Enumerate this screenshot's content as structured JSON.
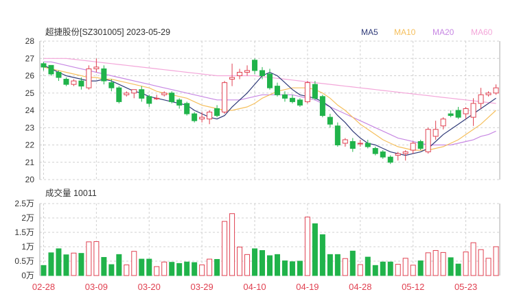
{
  "title": "超捷股份[SZ301005] 2023-05-29",
  "legend": [
    {
      "label": "MA5",
      "color": "#2f3a78"
    },
    {
      "label": "MA10",
      "color": "#f5bf5c"
    },
    {
      "label": "MA20",
      "color": "#c787e3"
    },
    {
      "label": "MA60",
      "color": "#f3a6d9"
    }
  ],
  "volume_title": "成交量 10011",
  "colors": {
    "up": "#e04050",
    "down": "#20b34a",
    "grid": "#d0d0d0"
  },
  "chart_data": {
    "type": "candlestick",
    "dates": [
      "02-28",
      "03-01",
      "03-02",
      "03-03",
      "03-06",
      "03-07",
      "03-08",
      "03-09",
      "03-10",
      "03-13",
      "03-14",
      "03-15",
      "03-16",
      "03-17",
      "03-20",
      "03-21",
      "03-22",
      "03-23",
      "03-24",
      "03-27",
      "03-28",
      "03-29",
      "03-30",
      "03-31",
      "04-03",
      "04-04",
      "04-06",
      "04-07",
      "04-10",
      "04-11",
      "04-12",
      "04-13",
      "04-14",
      "04-17",
      "04-18",
      "04-19",
      "04-20",
      "04-21",
      "04-24",
      "04-25",
      "04-26",
      "04-27",
      "04-28",
      "05-04",
      "05-05",
      "05-08",
      "05-09",
      "05-10",
      "05-11",
      "05-12",
      "05-15",
      "05-16",
      "05-17",
      "05-18",
      "05-19",
      "05-22",
      "05-23",
      "05-24",
      "05-25",
      "05-26",
      "05-29"
    ],
    "x_tick_labels": [
      "02-28",
      "03-09",
      "03-20",
      "03-29",
      "04-10",
      "04-19",
      "04-28",
      "05-12",
      "05-23"
    ],
    "x_tick_indices": [
      0,
      7,
      14,
      21,
      28,
      35,
      42,
      49,
      56
    ],
    "price": {
      "ylim": [
        20,
        28
      ],
      "yticks": [
        20,
        21,
        22,
        23,
        24,
        25,
        26,
        27,
        28
      ],
      "ohlc": [
        [
          26.7,
          26.8,
          26.3,
          26.5
        ],
        [
          26.6,
          26.6,
          26.0,
          26.1
        ],
        [
          26.2,
          26.3,
          25.7,
          25.9
        ],
        [
          25.8,
          25.9,
          25.4,
          25.5
        ],
        [
          25.5,
          25.8,
          25.4,
          25.7
        ],
        [
          25.7,
          25.9,
          25.2,
          25.4
        ],
        [
          25.3,
          26.6,
          25.2,
          26.4
        ],
        [
          26.4,
          27.0,
          26.2,
          26.5
        ],
        [
          26.4,
          26.6,
          25.5,
          25.7
        ],
        [
          25.6,
          25.8,
          25.1,
          25.3
        ],
        [
          25.3,
          25.4,
          24.4,
          24.5
        ],
        [
          24.9,
          25.1,
          24.8,
          25.0
        ],
        [
          25.0,
          25.2,
          24.7,
          25.2
        ],
        [
          25.2,
          25.4,
          24.5,
          24.7
        ],
        [
          24.8,
          24.9,
          24.2,
          24.4
        ],
        [
          24.7,
          24.9,
          24.6,
          24.7
        ],
        [
          24.9,
          25.1,
          24.8,
          25.0
        ],
        [
          25.0,
          25.1,
          24.4,
          24.5
        ],
        [
          24.6,
          24.7,
          24.1,
          24.3
        ],
        [
          24.4,
          24.5,
          23.7,
          23.8
        ],
        [
          23.8,
          23.9,
          23.3,
          23.4
        ],
        [
          23.5,
          23.9,
          23.3,
          23.6
        ],
        [
          23.5,
          24.0,
          23.2,
          23.9
        ],
        [
          24.1,
          24.3,
          23.6,
          23.7
        ],
        [
          23.9,
          25.7,
          23.8,
          25.6
        ],
        [
          25.8,
          26.7,
          25.4,
          25.9
        ],
        [
          26.0,
          26.4,
          25.8,
          26.2
        ],
        [
          26.2,
          26.6,
          26.0,
          26.3
        ],
        [
          26.9,
          27.0,
          26.1,
          26.3
        ],
        [
          26.3,
          26.5,
          25.8,
          26.0
        ],
        [
          26.1,
          26.4,
          25.2,
          25.3
        ],
        [
          25.4,
          25.6,
          24.8,
          24.9
        ],
        [
          24.9,
          25.1,
          24.5,
          24.7
        ],
        [
          24.7,
          24.9,
          24.4,
          24.5
        ],
        [
          24.6,
          24.7,
          24.2,
          24.3
        ],
        [
          24.5,
          25.7,
          24.4,
          25.6
        ],
        [
          25.5,
          25.7,
          24.6,
          24.7
        ],
        [
          24.8,
          24.9,
          23.6,
          23.7
        ],
        [
          23.6,
          23.8,
          23.0,
          23.2
        ],
        [
          23.1,
          23.3,
          21.9,
          22.0
        ],
        [
          22.1,
          22.4,
          21.9,
          22.3
        ],
        [
          22.2,
          22.4,
          21.6,
          21.8
        ],
        [
          22.1,
          22.3,
          21.9,
          22.1
        ],
        [
          22.1,
          22.3,
          21.8,
          21.9
        ],
        [
          21.8,
          21.9,
          21.4,
          21.5
        ],
        [
          21.6,
          21.7,
          21.2,
          21.3
        ],
        [
          21.3,
          21.4,
          20.9,
          21.0
        ],
        [
          21.4,
          21.6,
          21.1,
          21.5
        ],
        [
          21.5,
          21.7,
          21.1,
          21.6
        ],
        [
          21.7,
          22.2,
          21.5,
          22.1
        ],
        [
          22.2,
          22.3,
          21.7,
          21.8
        ],
        [
          21.6,
          23.0,
          21.5,
          22.9
        ],
        [
          22.5,
          23.4,
          22.3,
          22.9
        ],
        [
          23.1,
          23.6,
          22.9,
          23.5
        ],
        [
          23.8,
          24.0,
          23.6,
          23.7
        ],
        [
          24.0,
          24.2,
          23.5,
          23.6
        ],
        [
          23.8,
          24.2,
          23.5,
          24.1
        ],
        [
          23.6,
          24.7,
          23.1,
          24.4
        ],
        [
          24.4,
          25.3,
          24.1,
          24.9
        ],
        [
          24.9,
          25.1,
          24.8,
          25.0
        ],
        [
          25.0,
          25.5,
          24.9,
          25.3
        ]
      ],
      "ma5": [
        26.6,
        26.4,
        26.2,
        26.0,
        25.9,
        25.8,
        25.7,
        25.7,
        25.8,
        25.7,
        25.5,
        25.3,
        25.1,
        25.0,
        24.8,
        24.7,
        24.6,
        24.5,
        24.4,
        24.3,
        24.0,
        23.8,
        23.6,
        23.5,
        23.7,
        24.2,
        24.6,
        25.0,
        25.5,
        26.0,
        26.2,
        26.0,
        25.6,
        25.2,
        24.9,
        24.8,
        24.7,
        24.5,
        24.2,
        23.7,
        23.3,
        22.8,
        22.4,
        22.1,
        22.0,
        21.8,
        21.6,
        21.5,
        21.4,
        21.5,
        21.6,
        21.8,
        22.2,
        22.6,
        22.9,
        23.2,
        23.5,
        23.8,
        24.1,
        24.4,
        24.7
      ],
      "ma10": [
        26.5,
        26.4,
        26.3,
        26.2,
        26.1,
        26.0,
        25.9,
        25.9,
        25.8,
        25.8,
        25.7,
        25.6,
        25.5,
        25.4,
        25.3,
        25.1,
        25.0,
        24.9,
        24.8,
        24.7,
        24.5,
        24.3,
        24.2,
        24.1,
        24.0,
        24.0,
        24.1,
        24.2,
        24.4,
        24.7,
        24.9,
        25.1,
        25.2,
        25.3,
        25.3,
        25.3,
        25.2,
        25.0,
        24.7,
        24.3,
        24.0,
        23.6,
        23.2,
        22.9,
        22.6,
        22.3,
        22.1,
        21.9,
        21.8,
        21.7,
        21.7,
        21.7,
        21.8,
        21.9,
        22.1,
        22.3,
        22.6,
        22.9,
        23.2,
        23.6,
        24.0
      ],
      "ma20": [
        26.8,
        26.8,
        26.7,
        26.6,
        26.5,
        26.4,
        26.3,
        26.2,
        26.1,
        26.0,
        25.9,
        25.8,
        25.7,
        25.6,
        25.5,
        25.4,
        25.3,
        25.2,
        25.1,
        25.0,
        24.9,
        24.8,
        24.7,
        24.6,
        24.6,
        24.6,
        24.6,
        24.7,
        24.8,
        24.9,
        24.9,
        24.9,
        24.9,
        24.9,
        24.8,
        24.7,
        24.6,
        24.4,
        24.2,
        24.0,
        23.8,
        23.6,
        23.4,
        23.2,
        23.0,
        22.8,
        22.6,
        22.4,
        22.3,
        22.2,
        22.1,
        22.0,
        22.0,
        22.0,
        22.0,
        22.1,
        22.2,
        22.3,
        22.5,
        22.6,
        22.8
      ],
      "ma60": [
        27.0,
        27.0,
        27.0,
        27.0,
        26.95,
        26.9,
        26.85,
        26.8,
        26.75,
        26.7,
        26.65,
        26.6,
        26.55,
        26.5,
        26.45,
        26.4,
        26.35,
        26.3,
        26.25,
        26.2,
        26.15,
        26.1,
        26.05,
        26.0,
        26.0,
        26.0,
        26.0,
        26.0,
        26.0,
        25.95,
        25.9,
        25.85,
        25.8,
        25.75,
        25.7,
        25.65,
        25.6,
        25.55,
        25.5,
        25.45,
        25.4,
        25.35,
        25.3,
        25.25,
        25.2,
        25.15,
        25.1,
        25.05,
        25.0,
        24.95,
        24.9,
        24.85,
        24.8,
        24.75,
        24.7,
        24.65,
        24.6,
        24.55,
        24.5,
        24.45,
        24.4
      ]
    },
    "volume": {
      "ylim": [
        0,
        25000
      ],
      "yticks": [
        0,
        5000,
        10000,
        15000,
        20000,
        25000
      ],
      "ytick_labels": [
        "0万",
        "0.5万",
        "1万",
        "1.5万",
        "2万",
        "2.5万"
      ],
      "values": [
        3500,
        7900,
        9300,
        7200,
        7800,
        7700,
        11700,
        11800,
        6300,
        3800,
        7300,
        3700,
        8400,
        5700,
        5700,
        3100,
        4700,
        4600,
        4200,
        4700,
        4500,
        3700,
        5700,
        5600,
        18800,
        21500,
        9900,
        7300,
        9300,
        8700,
        6900,
        7300,
        5100,
        4800,
        5000,
        20300,
        18000,
        14200,
        7300,
        7300,
        5900,
        8500,
        3800,
        6400,
        3500,
        4700,
        4700,
        3900,
        6000,
        3600,
        5100,
        7900,
        8700,
        8000,
        6200,
        4000,
        8200,
        11400,
        9000,
        6000,
        10011
      ]
    }
  }
}
